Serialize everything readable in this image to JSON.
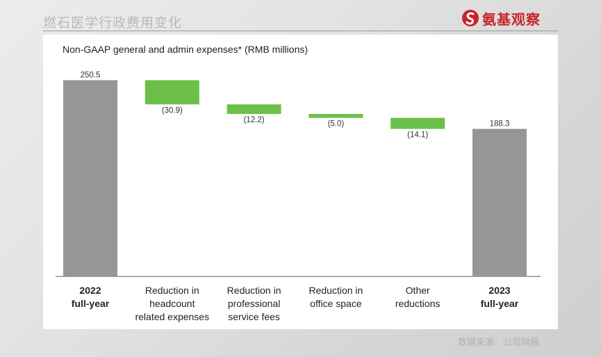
{
  "header": {
    "title": "燃石医学行政费用变化",
    "logo_text": "氨基观察",
    "brand_color": "#c9242b"
  },
  "source": "数据来源：公司财报",
  "chart_data": {
    "type": "bar",
    "subtype": "waterfall",
    "title": "Non-GAAP general and admin expenses* (RMB millions)",
    "categories": [
      [
        "2022",
        "full-year"
      ],
      [
        "Reduction in",
        "headcount",
        "related expenses"
      ],
      [
        "Reduction in",
        "professional",
        "service fees"
      ],
      [
        "Reduction in",
        "office space"
      ],
      [
        "Other",
        "reductions"
      ],
      [
        "2023",
        "full-year"
      ]
    ],
    "category_bold": [
      true,
      false,
      false,
      false,
      false,
      true
    ],
    "values": [
      250.5,
      -30.9,
      -12.2,
      -5.0,
      -14.1,
      188.3
    ],
    "value_labels": [
      "250.5",
      "(30.9)",
      "(12.2)",
      "(5.0)",
      "(14.1)",
      "188.3"
    ],
    "kinds": [
      "total",
      "delta",
      "delta",
      "delta",
      "delta",
      "total"
    ],
    "colors": {
      "total": "#969696",
      "delta": "#6cc04a"
    },
    "ylim": [
      0,
      270
    ],
    "grid": false,
    "xlabel": "",
    "ylabel": ""
  }
}
